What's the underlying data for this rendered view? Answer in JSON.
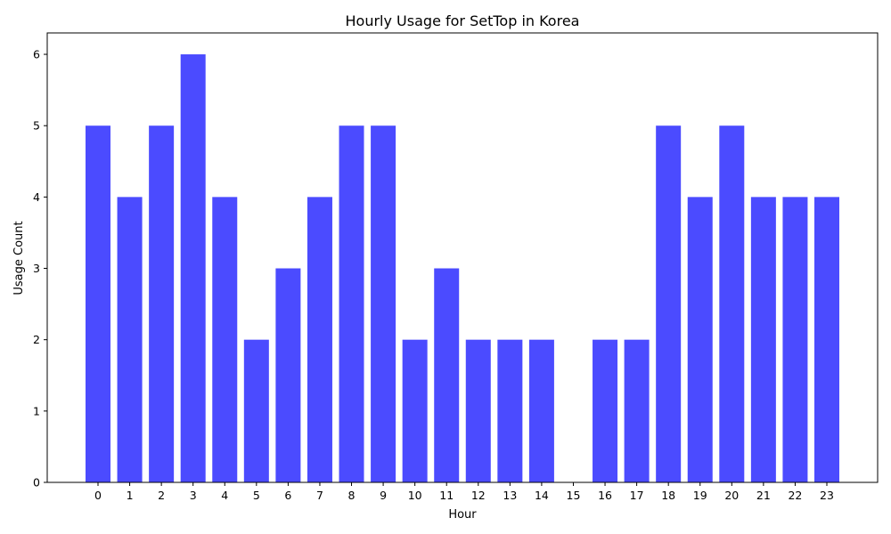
{
  "chart_data": {
    "type": "bar",
    "title": "Hourly Usage for SetTop in Korea",
    "xlabel": "Hour",
    "ylabel": "Usage Count",
    "categories": [
      "0",
      "1",
      "2",
      "3",
      "4",
      "5",
      "6",
      "7",
      "8",
      "9",
      "10",
      "11",
      "12",
      "13",
      "14",
      "15",
      "16",
      "17",
      "18",
      "19",
      "20",
      "21",
      "22",
      "23"
    ],
    "values": [
      5,
      4,
      5,
      6,
      4,
      2,
      3,
      4,
      5,
      5,
      2,
      3,
      2,
      2,
      2,
      0,
      2,
      2,
      5,
      4,
      5,
      4,
      4,
      4
    ],
    "yticks": [
      "0",
      "1",
      "2",
      "3",
      "4",
      "5",
      "6"
    ],
    "ylim": [
      0,
      6.3
    ],
    "grid": false,
    "bar_color": "#4b4bff"
  }
}
